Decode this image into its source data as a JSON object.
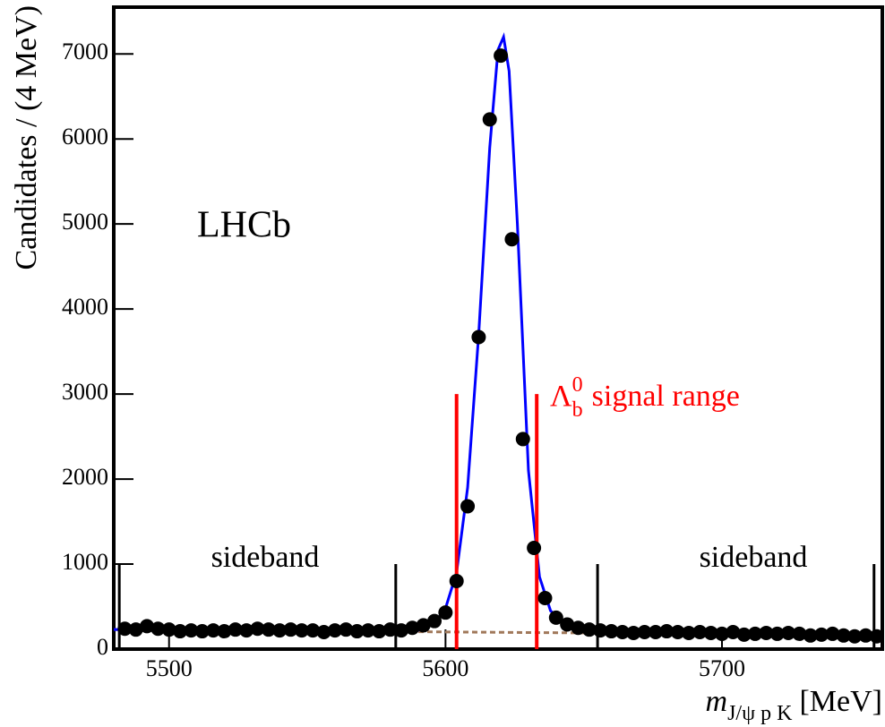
{
  "chart_data": {
    "type": "scatter",
    "y_label": "Candidates / (4 MeV)",
    "x_label": {
      "symbol": "m",
      "subscript": "J/ψ p K",
      "unit": "[MeV]"
    },
    "experiment": "LHCb",
    "sideband_label": "sideband",
    "signal_label": {
      "symbol": "Λ",
      "subscript": "b",
      "superscript": "0",
      "text": "signal range"
    },
    "xlim": [
      5480,
      5758
    ],
    "ylim": [
      0,
      7550
    ],
    "xticks": [
      5500,
      5600,
      5700
    ],
    "yticks": [
      0,
      1000,
      2000,
      3000,
      4000,
      5000,
      6000,
      7000
    ],
    "color": "#000000",
    "x": [
      5484,
      5488,
      5492,
      5496,
      5500,
      5504,
      5508,
      5512,
      5516,
      5520,
      5524,
      5528,
      5532,
      5536,
      5540,
      5544,
      5548,
      5552,
      5556,
      5560,
      5564,
      5568,
      5572,
      5576,
      5580,
      5584,
      5588,
      5592,
      5596,
      5600,
      5604,
      5608,
      5612,
      5616,
      5620,
      5624,
      5628,
      5632,
      5636,
      5640,
      5644,
      5648,
      5652,
      5656,
      5660,
      5664,
      5668,
      5672,
      5676,
      5680,
      5684,
      5688,
      5692,
      5696,
      5700,
      5704,
      5708,
      5712,
      5716,
      5720,
      5724,
      5728,
      5732,
      5736,
      5740,
      5744,
      5748,
      5752,
      5756
    ],
    "values": [
      240,
      230,
      270,
      240,
      230,
      210,
      220,
      210,
      220,
      210,
      230,
      220,
      240,
      230,
      220,
      230,
      220,
      220,
      200,
      220,
      230,
      210,
      220,
      210,
      230,
      220,
      250,
      280,
      330,
      430,
      800,
      1680,
      3670,
      6230,
      6980,
      4820,
      2470,
      1190,
      600,
      370,
      290,
      250,
      230,
      220,
      210,
      200,
      190,
      200,
      200,
      210,
      200,
      190,
      200,
      190,
      180,
      200,
      170,
      180,
      190,
      180,
      190,
      180,
      160,
      170,
      180,
      160,
      150,
      160,
      150
    ],
    "fit": {
      "color": "#0000ff",
      "x": [
        5480,
        5560,
        5590,
        5596,
        5600,
        5604,
        5608,
        5612,
        5616,
        5619,
        5621,
        5623,
        5626,
        5630,
        5634,
        5638,
        5644,
        5650,
        5660,
        5700,
        5758
      ],
      "values": [
        230,
        212,
        220,
        300,
        480,
        900,
        1900,
        3700,
        5900,
        7050,
        7200,
        6800,
        5000,
        2100,
        850,
        450,
        280,
        230,
        205,
        190,
        165
      ]
    },
    "background": {
      "color": "#a0785a",
      "x": [
        5480,
        5758
      ],
      "values": [
        230,
        165
      ]
    },
    "signal_range": {
      "color": "#ff0000",
      "x": [
        5604,
        5633
      ],
      "ymax": 3000
    },
    "sidebands": {
      "color": "#000000",
      "x": [
        5482,
        5582,
        5655,
        5755
      ],
      "ymax": 1000
    }
  }
}
